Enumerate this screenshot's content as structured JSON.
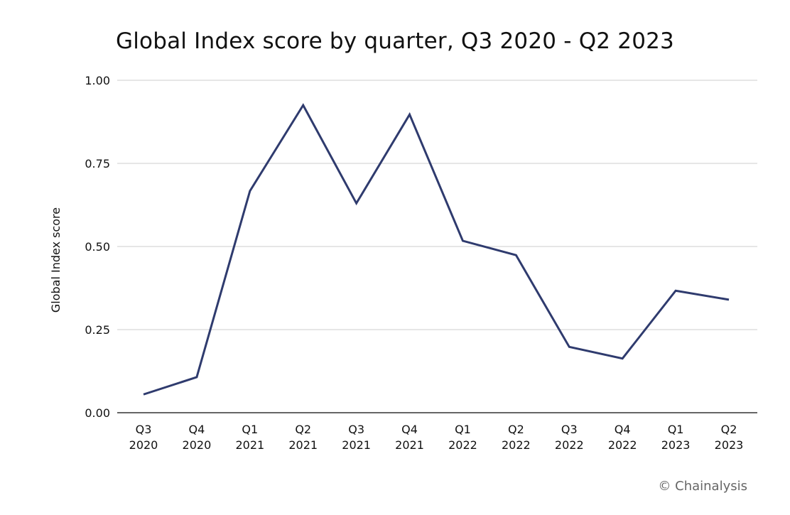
{
  "chart_data": {
    "type": "line",
    "title": "Global Index score by quarter, Q3 2020 - Q2 2023",
    "xlabel": "",
    "ylabel": "Global Index score",
    "ylim": [
      0,
      1.0
    ],
    "yticks": [
      "0.00",
      "0.25",
      "0.50",
      "0.75",
      "1.00"
    ],
    "grid": true,
    "line_color": "#2f3b6e",
    "categories": [
      [
        "Q3",
        "2020"
      ],
      [
        "Q4",
        "2020"
      ],
      [
        "Q1",
        "2021"
      ],
      [
        "Q2",
        "2021"
      ],
      [
        "Q3",
        "2021"
      ],
      [
        "Q4",
        "2021"
      ],
      [
        "Q1",
        "2022"
      ],
      [
        "Q2",
        "2022"
      ],
      [
        "Q3",
        "2022"
      ],
      [
        "Q4",
        "2022"
      ],
      [
        "Q1",
        "2023"
      ],
      [
        "Q2",
        "2023"
      ]
    ],
    "series": [
      {
        "values": [
          0.055,
          0.107,
          0.667,
          0.925,
          0.63,
          0.897,
          0.517,
          0.474,
          0.198,
          0.163,
          0.367,
          0.34
        ]
      }
    ]
  },
  "credit": "© Chainalysis"
}
